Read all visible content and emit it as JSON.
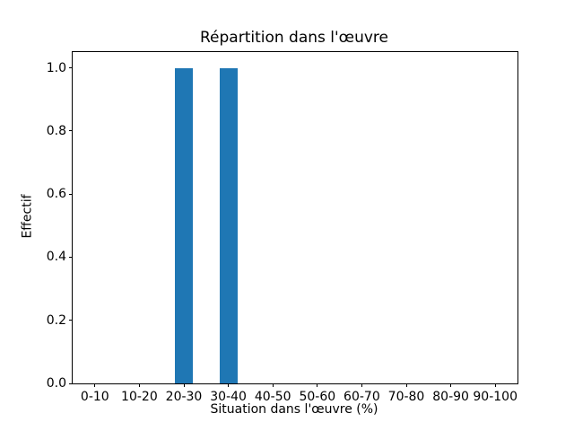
{
  "figure": {
    "background_color": "#ffffff"
  },
  "chart_data": {
    "type": "bar",
    "title": "Répartition dans l'œuvre",
    "xlabel": "Situation dans l'œuvre (%)",
    "ylabel": "Effectif",
    "categories": [
      "0-10",
      "10-20",
      "20-30",
      "30-40",
      "40-50",
      "50-60",
      "60-70",
      "70-80",
      "80-90",
      "90-100"
    ],
    "values": [
      0,
      0,
      1,
      1,
      0,
      0,
      0,
      0,
      0,
      0
    ],
    "yticks": [
      0,
      0.2,
      0.4,
      0.6,
      0.8,
      1.0
    ],
    "ytick_labels": [
      "0.0",
      "0.2",
      "0.4",
      "0.6",
      "0.8",
      "1.0"
    ],
    "ylim": [
      0,
      1.05
    ],
    "bar_color": "#1f77b4",
    "axis_color": "#000000",
    "grid": false,
    "legend_position": "none"
  }
}
